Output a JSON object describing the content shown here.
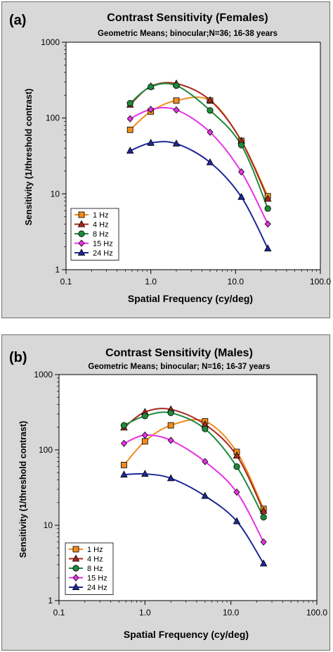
{
  "chart_data": [
    {
      "type": "line",
      "panel_label": "(a)",
      "title": "Contrast Sensitivity (Females)",
      "subtitle": "Geometric Means; binocular;N=36; 16-38 years",
      "xlabel": "Spatial Frequency (cy/deg)",
      "ylabel": "Sensitivity (1/threshold contrast)",
      "xscale": "log",
      "yscale": "log",
      "xlim": [
        0.1,
        100
      ],
      "ylim": [
        1,
        1000
      ],
      "xticks": [
        "0.1",
        "1.0",
        "10.0",
        "100.0"
      ],
      "yticks": [
        "1",
        "10",
        "100",
        "1000"
      ],
      "legend_position": "bottom-left",
      "series": [
        {
          "name": "1 Hz",
          "color": "#f08c1e",
          "marker": "square",
          "x": [
            0.57,
            1.0,
            2.0,
            5.0,
            11.7,
            24.0
          ],
          "y": [
            70,
            122,
            170,
            170,
            50,
            9.3
          ]
        },
        {
          "name": "4 Hz",
          "color": "#a8281e",
          "marker": "triangle",
          "x": [
            0.57,
            1.0,
            2.0,
            5.0,
            11.7,
            24.0
          ],
          "y": [
            150,
            262,
            285,
            172,
            50,
            8.6
          ]
        },
        {
          "name": "8 Hz",
          "color": "#1e8a3c",
          "marker": "circle",
          "x": [
            0.57,
            1.0,
            2.0,
            5.0,
            11.7,
            24.0
          ],
          "y": [
            157,
            258,
            268,
            126,
            44,
            6.4
          ]
        },
        {
          "name": "15 Hz",
          "color": "#e632e6",
          "marker": "diamond",
          "x": [
            0.57,
            1.0,
            2.0,
            5.0,
            11.7,
            24.0
          ],
          "y": [
            98,
            130,
            128,
            65,
            19.5,
            4.0
          ]
        },
        {
          "name": "24 Hz",
          "color": "#1e2896",
          "marker": "triangle",
          "x": [
            0.57,
            1.0,
            2.0,
            5.0,
            11.7,
            24.0
          ],
          "y": [
            37,
            47,
            46,
            26,
            9.1,
            1.9
          ]
        }
      ]
    },
    {
      "type": "line",
      "panel_label": "(b)",
      "title": "Contrast Sensitivity (Males)",
      "subtitle": "Geometric Means; binocular; N=16; 16-37 years",
      "xlabel": "Spatial Frequency (cy/deg)",
      "ylabel": "Sensitivity (1/threshold contrast)",
      "xscale": "log",
      "yscale": "log",
      "xlim": [
        0.1,
        100
      ],
      "ylim": [
        1,
        1000
      ],
      "xticks": [
        "0.1",
        "1.0",
        "10.0",
        "100.0"
      ],
      "yticks": [
        "1",
        "10",
        "100",
        "1000"
      ],
      "legend_position": "bottom-left",
      "series": [
        {
          "name": "1 Hz",
          "color": "#f08c1e",
          "marker": "square",
          "x": [
            0.57,
            1.0,
            2.0,
            5.0,
            11.7,
            24.0
          ],
          "y": [
            63,
            130,
            212,
            240,
            94,
            16.5
          ]
        },
        {
          "name": "4 Hz",
          "color": "#a8281e",
          "marker": "triangle",
          "x": [
            0.57,
            1.0,
            2.0,
            5.0,
            11.7,
            24.0
          ],
          "y": [
            198,
            318,
            345,
            218,
            84,
            15.5
          ]
        },
        {
          "name": "8 Hz",
          "color": "#1e8a3c",
          "marker": "circle",
          "x": [
            0.57,
            1.0,
            2.0,
            5.0,
            11.7,
            24.0
          ],
          "y": [
            212,
            282,
            310,
            190,
            60,
            12.8
          ]
        },
        {
          "name": "15 Hz",
          "color": "#e632e6",
          "marker": "diamond",
          "x": [
            0.57,
            1.0,
            2.0,
            5.0,
            11.7,
            24.0
          ],
          "y": [
            122,
            157,
            134,
            70,
            27.5,
            6.0
          ]
        },
        {
          "name": "24 Hz",
          "color": "#1e2896",
          "marker": "triangle",
          "x": [
            0.57,
            1.0,
            2.0,
            5.0,
            11.7,
            24.0
          ],
          "y": [
            47,
            48,
            42,
            24.5,
            11.3,
            3.1
          ]
        }
      ]
    }
  ]
}
